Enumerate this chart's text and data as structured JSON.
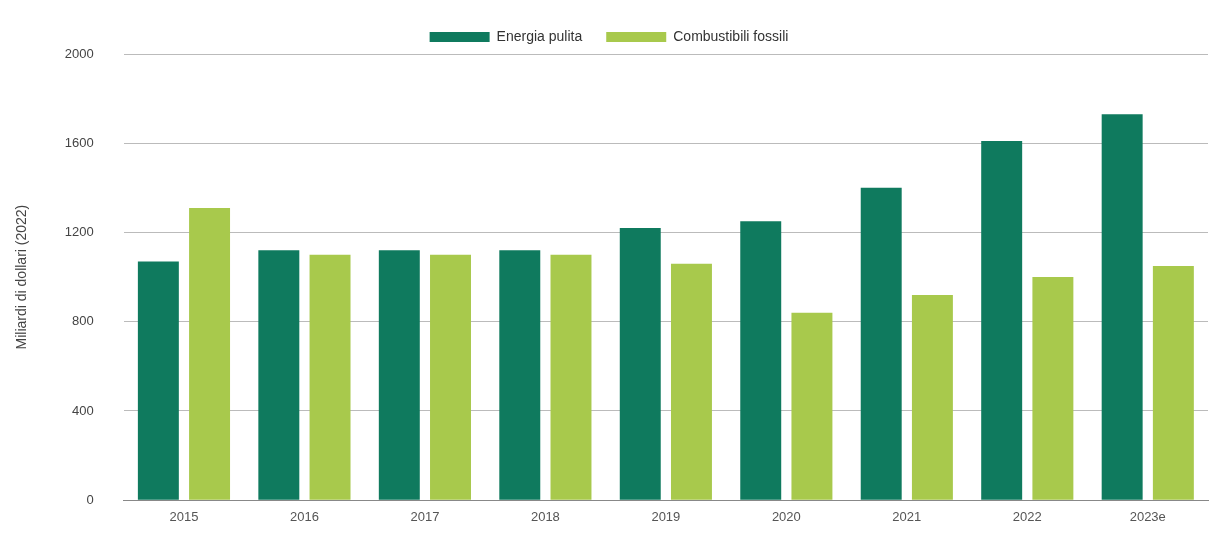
{
  "chart_data": {
    "type": "bar",
    "ylabel": "Miliardi di dollari (2022)",
    "categories": [
      "2015",
      "2016",
      "2017",
      "2018",
      "2019",
      "2020",
      "2021",
      "2022",
      "2023e"
    ],
    "series": [
      {
        "name": "Energia pulita",
        "color": "#0f7a5e",
        "values": [
          1070,
          1120,
          1120,
          1120,
          1220,
          1250,
          1400,
          1610,
          1730
        ]
      },
      {
        "name": "Combustibili fossili",
        "color": "#a8c94c",
        "values": [
          1310,
          1100,
          1100,
          1100,
          1060,
          840,
          920,
          1000,
          1050
        ]
      }
    ],
    "ylim": [
      0,
      2000
    ],
    "yticks": [
      0,
      400,
      800,
      1200,
      1600,
      2000
    ],
    "grid": "y",
    "legend": "top"
  }
}
